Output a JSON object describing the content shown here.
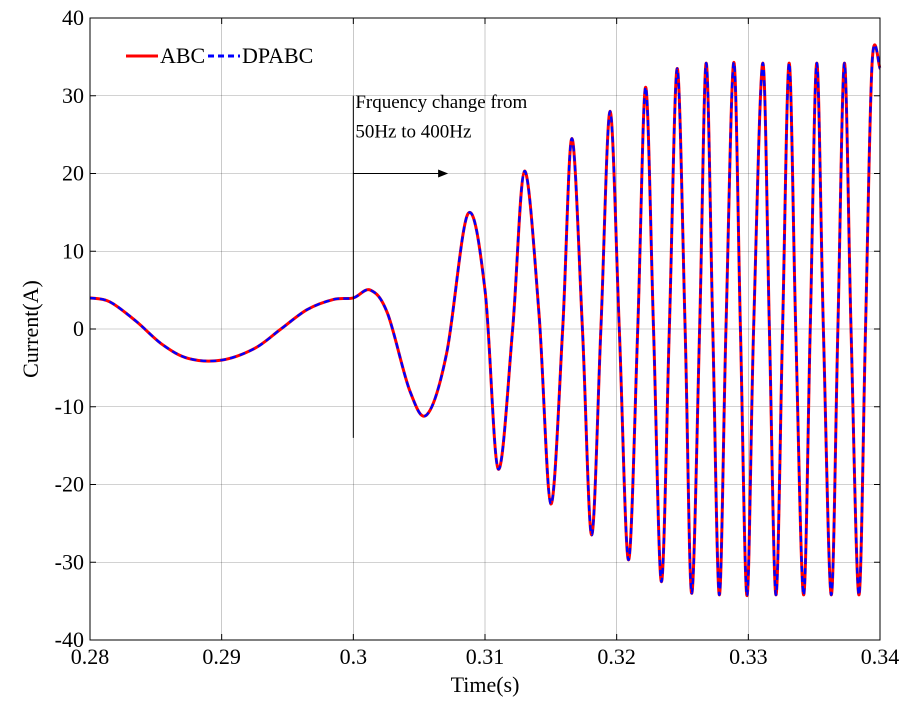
{
  "chart_data": {
    "type": "line",
    "xlabel": "Time(s)",
    "ylabel": "Current(A)",
    "xlim": [
      0.28,
      0.34
    ],
    "ylim": [
      -40,
      40
    ],
    "xticks": [
      0.28,
      0.29,
      0.3,
      0.31,
      0.32,
      0.33,
      0.34
    ],
    "xtick_labels": [
      "0.28",
      "0.29",
      "0.3",
      "0.31",
      "0.32",
      "0.33",
      "0.34"
    ],
    "yticks": [
      -40,
      -30,
      -20,
      -10,
      0,
      10,
      20,
      30,
      40
    ],
    "ytick_labels": [
      "-40",
      "-30",
      "-20",
      "-10",
      "0",
      "10",
      "20",
      "30",
      "40"
    ],
    "grid": true,
    "legend_position": "top-left",
    "series": [
      {
        "name": "ABC",
        "color": "#ff0000",
        "style": "solid",
        "x": [
          0.28,
          0.2815,
          0.2835,
          0.2855,
          0.2875,
          0.29,
          0.2925,
          0.2945,
          0.2965,
          0.2985,
          0.3,
          0.3013,
          0.3026,
          0.3043,
          0.3056,
          0.3071,
          0.3087,
          0.31,
          0.311,
          0.3121,
          0.313,
          0.3141,
          0.315,
          0.3159,
          0.3166,
          0.3174,
          0.3181,
          0.3188,
          0.3195,
          0.3202,
          0.3209,
          0.3216,
          0.3222,
          0.3228,
          0.3234,
          0.324,
          0.3246,
          0.3252,
          0.3257,
          0.3263,
          0.3268,
          0.3273,
          0.3278,
          0.3283,
          0.3289,
          0.3294,
          0.3299,
          0.3304,
          0.3311,
          0.3316,
          0.3321,
          0.3326,
          0.3331,
          0.3336,
          0.3342,
          0.3347,
          0.3352,
          0.3357,
          0.3363,
          0.3368,
          0.3373,
          0.3378,
          0.3384,
          0.3389,
          0.3394,
          0.34
        ],
        "y": [
          4.0,
          3.5,
          1.0,
          -2.0,
          -3.8,
          -4.0,
          -2.5,
          0.0,
          2.5,
          3.8,
          4.0,
          5.0,
          2.0,
          -8.0,
          -11.0,
          -3.0,
          14.8,
          5.0,
          -18.0,
          0.0,
          20.3,
          2.0,
          -22.5,
          0.0,
          24.5,
          0.0,
          -26.5,
          0.0,
          28.0,
          0.0,
          -29.7,
          0.0,
          31.1,
          0.0,
          -32.5,
          0.0,
          33.5,
          0.0,
          -34.0,
          0.0,
          34.2,
          0.0,
          -34.2,
          0.0,
          34.3,
          0.0,
          -34.3,
          0.0,
          34.2,
          0.0,
          -34.2,
          0.0,
          34.2,
          0.0,
          -34.2,
          0.0,
          34.2,
          0.0,
          -34.2,
          0.0,
          34.2,
          0.0,
          -34.2,
          0.0,
          34.2,
          33.5
        ]
      },
      {
        "name": "DPABC",
        "color": "#0000ff",
        "style": "dashed",
        "x": [
          0.28,
          0.2815,
          0.2835,
          0.2855,
          0.2875,
          0.29,
          0.2925,
          0.2945,
          0.2965,
          0.2985,
          0.3,
          0.3013,
          0.3026,
          0.3043,
          0.3056,
          0.3071,
          0.3087,
          0.31,
          0.311,
          0.3121,
          0.313,
          0.3141,
          0.315,
          0.3159,
          0.3166,
          0.3174,
          0.3181,
          0.3188,
          0.3195,
          0.3202,
          0.3209,
          0.3216,
          0.3222,
          0.3228,
          0.3234,
          0.324,
          0.3246,
          0.3252,
          0.3257,
          0.3263,
          0.3268,
          0.3273,
          0.3278,
          0.3283,
          0.3289,
          0.3294,
          0.3299,
          0.3304,
          0.3311,
          0.3316,
          0.3321,
          0.3326,
          0.3331,
          0.3336,
          0.3342,
          0.3347,
          0.3352,
          0.3357,
          0.3363,
          0.3368,
          0.3373,
          0.3378,
          0.3384,
          0.3389,
          0.3394,
          0.34
        ],
        "y": [
          4.0,
          3.5,
          1.0,
          -2.0,
          -3.8,
          -4.0,
          -2.5,
          0.0,
          2.5,
          3.8,
          4.0,
          5.0,
          2.0,
          -8.0,
          -11.0,
          -3.0,
          14.8,
          5.0,
          -18.0,
          0.0,
          20.3,
          2.0,
          -22.5,
          0.0,
          24.5,
          0.0,
          -26.5,
          0.0,
          28.0,
          0.0,
          -29.7,
          0.0,
          31.1,
          0.0,
          -32.5,
          0.0,
          33.5,
          0.0,
          -34.0,
          0.0,
          34.2,
          0.0,
          -34.2,
          0.0,
          34.3,
          0.0,
          -34.3,
          0.0,
          34.2,
          0.0,
          -34.2,
          0.0,
          34.2,
          0.0,
          -34.2,
          0.0,
          34.2,
          0.0,
          -34.2,
          0.0,
          34.2,
          0.0,
          -34.2,
          0.0,
          34.2,
          33.5
        ]
      }
    ],
    "annotations": [
      {
        "lines": [
          "Frquency change from",
          "50Hz to 400Hz"
        ],
        "marker_x": 0.3,
        "marker_y_range": [
          -14,
          30
        ],
        "arrow_from": [
          0.3,
          20
        ],
        "arrow_to": [
          0.3072,
          20
        ]
      }
    ]
  }
}
